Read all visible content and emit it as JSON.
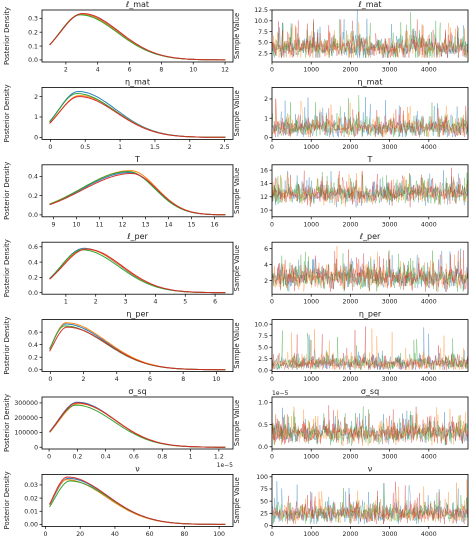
{
  "colors": {
    "blue": "#1f77b4",
    "orange": "#ff7f0e",
    "green": "#2ca02c",
    "red": "#d62728",
    "axis": "#000000"
  },
  "chart_data": [
    {
      "type": "line",
      "panel": "density",
      "title": "ℓ_mat",
      "ylabel": "Posterior Density",
      "xlabel": "",
      "xlim": [
        0.5,
        12.5
      ],
      "ylim": [
        -0.015,
        0.36
      ],
      "xticks": [
        2,
        4,
        6,
        8,
        10,
        12
      ],
      "yticks": [
        0.0,
        0.1,
        0.2,
        0.3
      ],
      "ytick_labels": [
        "0.0",
        "0.1",
        "0.2",
        "0.3"
      ],
      "offset_label": "",
      "peaks": [
        3.0,
        2.95,
        2.9,
        3.05
      ],
      "heights": [
        0.33,
        0.33,
        0.325,
        0.335
      ],
      "series": [
        {
          "values": []
        },
        {
          "values": []
        },
        {
          "values": []
        },
        {
          "values": []
        }
      ]
    },
    {
      "type": "line",
      "panel": "trace",
      "title": "ℓ_mat",
      "ylabel": "Sample Value",
      "xlabel": "",
      "xlim": [
        0,
        5000
      ],
      "ylim": [
        0.5,
        12.5
      ],
      "xticks": [
        0,
        1000,
        2000,
        3000,
        4000
      ],
      "yticks": [
        2.5,
        5.0,
        7.5,
        10.0,
        12.5
      ],
      "ytick_labels": [
        "2.5",
        "5.0",
        "7.5",
        "10.0",
        "12.5"
      ],
      "offset_label": "",
      "trace_center": 3.5,
      "trace_spread": 1.6,
      "trace_spike": 10.5,
      "trace_floor": 1.5
    },
    {
      "type": "line",
      "panel": "density",
      "title": "η_mat",
      "ylabel": "Posterior Density",
      "xlabel": "",
      "xlim": [
        -0.12,
        2.62
      ],
      "ylim": [
        -0.1,
        2.45
      ],
      "xticks": [
        0.0,
        0.5,
        1.0,
        1.5,
        2.0,
        2.5
      ],
      "yticks": [
        0,
        1,
        2
      ],
      "ytick_labels": [
        "0",
        "1",
        "2"
      ],
      "offset_label": "",
      "peaks": [
        0.4,
        0.42,
        0.38,
        0.41
      ],
      "heights": [
        2.25,
        2.05,
        2.15,
        2.0
      ],
      "series": [
        {
          "values": []
        },
        {
          "values": []
        },
        {
          "values": []
        },
        {
          "values": []
        }
      ]
    },
    {
      "type": "line",
      "panel": "trace",
      "title": "η_mat",
      "ylabel": "Sample Value",
      "xlabel": "",
      "xlim": [
        0,
        5000
      ],
      "ylim": [
        -0.1,
        2.6
      ],
      "xticks": [
        0,
        1000,
        2000,
        3000,
        4000
      ],
      "yticks": [
        0,
        1,
        2
      ],
      "ytick_labels": [
        "0",
        "1",
        "2"
      ],
      "offset_label": "",
      "trace_center": 0.45,
      "trace_spread": 0.3,
      "trace_spike": 2.2,
      "trace_floor": 0.02
    },
    {
      "type": "line",
      "panel": "density",
      "title": "T",
      "ylabel": "Posterior Density",
      "xlabel": "",
      "xlim": [
        8.5,
        16.8
      ],
      "ylim": [
        -0.02,
        0.52
      ],
      "xticks": [
        9,
        10,
        11,
        12,
        13,
        14,
        15,
        16
      ],
      "yticks": [
        0.0,
        0.2,
        0.4
      ],
      "ytick_labels": [
        "0.0",
        "0.2",
        "0.4"
      ],
      "offset_label": "",
      "peaks": [
        12.3,
        12.35,
        12.25,
        12.4
      ],
      "heights": [
        0.44,
        0.46,
        0.45,
        0.43
      ],
      "series": [
        {
          "values": []
        },
        {
          "values": []
        },
        {
          "values": []
        },
        {
          "values": []
        }
      ]
    },
    {
      "type": "line",
      "panel": "trace",
      "title": "T",
      "ylabel": "Sample Value",
      "xlabel": "",
      "xlim": [
        0,
        5000
      ],
      "ylim": [
        9.0,
        16.8
      ],
      "xticks": [
        0,
        1000,
        2000,
        3000,
        4000
      ],
      "yticks": [
        10,
        12,
        14,
        16
      ],
      "ytick_labels": [
        "10",
        "12",
        "14",
        "16"
      ],
      "offset_label": "",
      "trace_center": 12.3,
      "trace_spread": 0.9,
      "trace_spike": 15.8,
      "trace_floor": 9.6
    },
    {
      "type": "line",
      "panel": "density",
      "title": "ℓ_per",
      "ylabel": "Posterior Density",
      "xlabel": "",
      "xlim": [
        0.2,
        6.6
      ],
      "ylim": [
        -0.02,
        0.66
      ],
      "xticks": [
        1,
        2,
        3,
        4,
        5,
        6
      ],
      "yticks": [
        0.0,
        0.2,
        0.4,
        0.6
      ],
      "ytick_labels": [
        "0.0",
        "0.2",
        "0.4",
        "0.6"
      ],
      "offset_label": "",
      "peaks": [
        1.6,
        1.65,
        1.55,
        1.7
      ],
      "heights": [
        0.58,
        0.57,
        0.56,
        0.57
      ],
      "series": [
        {
          "values": []
        },
        {
          "values": []
        },
        {
          "values": []
        },
        {
          "values": []
        }
      ]
    },
    {
      "type": "line",
      "panel": "trace",
      "title": "ℓ_per",
      "ylabel": "Sample Value",
      "xlabel": "",
      "xlim": [
        0,
        5000
      ],
      "ylim": [
        0.3,
        6.8
      ],
      "xticks": [
        0,
        1000,
        2000,
        3000,
        4000
      ],
      "yticks": [
        2,
        4,
        6
      ],
      "ytick_labels": [
        "2",
        "4",
        "6"
      ],
      "offset_label": "",
      "trace_center": 2.2,
      "trace_spread": 0.9,
      "trace_spike": 6.0,
      "trace_floor": 0.6
    },
    {
      "type": "line",
      "panel": "density",
      "title": "η_per",
      "ylabel": "Posterior Density",
      "xlabel": "",
      "xlim": [
        -0.5,
        11.0
      ],
      "ylim": [
        -0.03,
        0.8
      ],
      "xticks": [
        0,
        2,
        4,
        6,
        8,
        10
      ],
      "yticks": [
        0.0,
        0.2,
        0.4,
        0.6
      ],
      "ytick_labels": [
        "0.0",
        "0.2",
        "0.4",
        "0.6"
      ],
      "offset_label": "",
      "peaks": [
        0.9,
        0.95,
        0.85,
        1.0
      ],
      "heights": [
        0.73,
        0.75,
        0.7,
        0.68
      ],
      "series": [
        {
          "values": []
        },
        {
          "values": []
        },
        {
          "values": []
        },
        {
          "values": []
        }
      ]
    },
    {
      "type": "line",
      "panel": "trace",
      "title": "η_per",
      "ylabel": "Sample Value",
      "xlabel": "",
      "xlim": [
        0,
        5000
      ],
      "ylim": [
        -0.3,
        11.0
      ],
      "xticks": [
        0,
        1000,
        2000,
        3000,
        4000
      ],
      "yticks": [
        0.0,
        2.5,
        5.0,
        7.5,
        10.0
      ],
      "ytick_labels": [
        "0.0",
        "2.5",
        "5.0",
        "7.5",
        "10.0"
      ],
      "offset_label": "",
      "trace_center": 1.3,
      "trace_spread": 0.9,
      "trace_spike": 9.5,
      "trace_floor": 0.1
    },
    {
      "type": "line",
      "panel": "density",
      "title": "σ_sq",
      "ylabel": "Posterior Density",
      "xlabel": "",
      "xlim": [
        -0.05,
        1.3
      ],
      "ylim": [
        -12000,
        340000
      ],
      "xticks": [
        0.0,
        0.2,
        0.4,
        0.6,
        0.8,
        1.0,
        1.2
      ],
      "yticks": [
        0,
        100000,
        200000,
        300000
      ],
      "ytick_labels": [
        "0",
        "100000",
        "200000",
        "300000"
      ],
      "offset_label": "1e−5",
      "peaks": [
        0.2,
        0.21,
        0.19,
        0.2
      ],
      "heights": [
        305000,
        295000,
        285000,
        300000
      ],
      "series": [
        {
          "values": []
        },
        {
          "values": []
        },
        {
          "values": []
        },
        {
          "values": []
        }
      ]
    },
    {
      "type": "line",
      "panel": "trace",
      "title": "σ_sq",
      "ylabel": "Sample Value",
      "xlabel": "",
      "xlim": [
        0,
        5000
      ],
      "ylim": [
        -0.05,
        1.12
      ],
      "xticks": [
        0,
        1000,
        2000,
        3000,
        4000
      ],
      "yticks": [
        0.0,
        0.5,
        1.0
      ],
      "ytick_labels": [
        "0.0",
        "0.5",
        "1.0"
      ],
      "offset_label": "1e−5",
      "trace_center": 0.28,
      "trace_spread": 0.14,
      "trace_spike": 0.95,
      "trace_floor": 0.02
    },
    {
      "type": "line",
      "panel": "density",
      "title": "ν",
      "ylabel": "Posterior Density",
      "xlabel": "",
      "xlim": [
        -2,
        108
      ],
      "ylim": [
        -0.0015,
        0.038
      ],
      "xticks": [
        0,
        20,
        40,
        60,
        80,
        100
      ],
      "yticks": [
        0.0,
        0.01,
        0.02,
        0.03
      ],
      "ytick_labels": [
        "0.00",
        "0.01",
        "0.02",
        "0.03"
      ],
      "offset_label": "",
      "peaks": [
        13,
        12,
        14,
        12.5
      ],
      "heights": [
        0.035,
        0.034,
        0.033,
        0.036
      ],
      "series": [
        {
          "values": []
        },
        {
          "values": []
        },
        {
          "values": []
        },
        {
          "values": []
        }
      ]
    },
    {
      "type": "line",
      "panel": "trace",
      "title": "ν",
      "ylabel": "Sample Value",
      "xlabel": "",
      "xlim": [
        0,
        5000
      ],
      "ylim": [
        -2,
        105
      ],
      "xticks": [
        0,
        1000,
        2000,
        3000,
        4000
      ],
      "yticks": [
        0,
        25,
        50,
        75,
        100
      ],
      "ytick_labels": [
        "0",
        "25",
        "50",
        "75",
        "100"
      ],
      "offset_label": "",
      "trace_center": 22,
      "trace_spread": 12,
      "trace_spike": 95,
      "trace_floor": 3
    }
  ]
}
